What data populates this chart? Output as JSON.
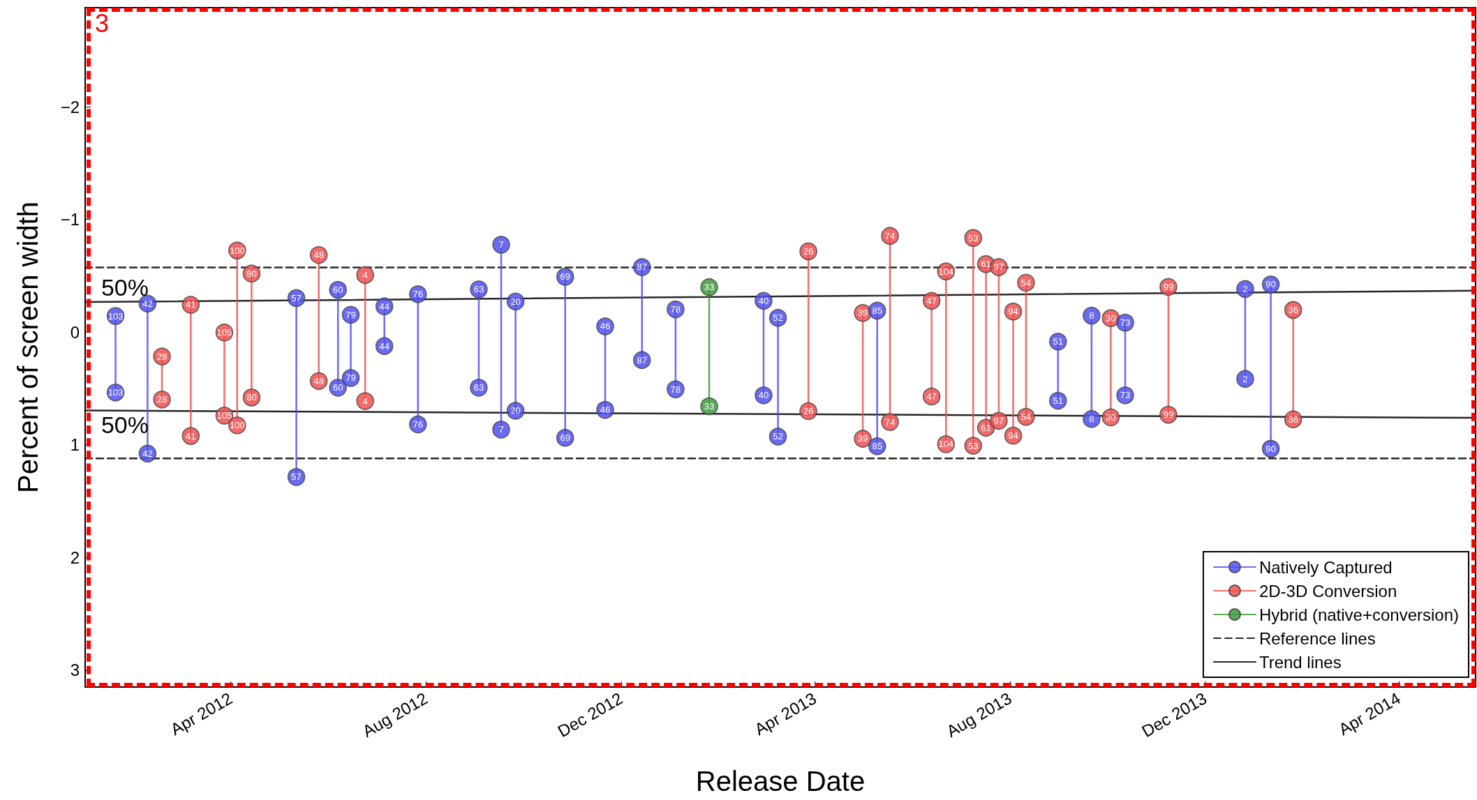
{
  "chart_data": {
    "type": "line",
    "xlabel": "Release Date",
    "ylabel": "Percent of screen width",
    "annotations": [
      "3",
      {
        "text": "50%",
        "x": "2012-01-04",
        "y": -0.267
      },
      {
        "text": "50%",
        "x": "2012-01-04",
        "y": 0.695
      },
      {
        "text": "103",
        "x": "2012-01-20",
        "y": -0.143
      },
      {
        "text": "103",
        "x": "2012-01-20",
        "y": 0.536
      },
      {
        "text": "42",
        "x": "2012-02-09",
        "y": -0.253
      },
      {
        "text": "42",
        "x": "2012-02-09",
        "y": 1.078
      },
      {
        "text": "28",
        "x": "2012-02-18",
        "y": 0.216
      },
      {
        "text": "28",
        "x": "2012-02-18",
        "y": 0.598
      },
      {
        "text": "41",
        "x": "2012-03-07",
        "y": -0.243
      },
      {
        "text": "41",
        "x": "2012-03-07",
        "y": 0.922
      },
      {
        "text": "105",
        "x": "2012-03-28",
        "y": 0.003
      },
      {
        "text": "105",
        "x": "2012-03-28",
        "y": 0.741
      },
      {
        "text": "100",
        "x": "2012-04-05",
        "y": -0.725
      },
      {
        "text": "100",
        "x": "2012-04-05",
        "y": 0.827
      },
      {
        "text": "80",
        "x": "2012-04-14",
        "y": -0.52
      },
      {
        "text": "80",
        "x": "2012-04-14",
        "y": 0.58
      },
      {
        "text": "57",
        "x": "2012-05-12",
        "y": -0.302
      },
      {
        "text": "57",
        "x": "2012-05-12",
        "y": 1.286
      },
      {
        "text": "48",
        "x": "2012-05-26",
        "y": -0.685
      },
      {
        "text": "48",
        "x": "2012-05-26",
        "y": 0.434
      },
      {
        "text": "60",
        "x": "2012-06-07",
        "y": -0.375
      },
      {
        "text": "60",
        "x": "2012-06-07",
        "y": 0.493
      },
      {
        "text": "79",
        "x": "2012-06-15",
        "y": -0.154
      },
      {
        "text": "79",
        "x": "2012-06-15",
        "y": 0.407
      },
      {
        "text": "4",
        "x": "2012-06-24",
        "y": -0.507
      },
      {
        "text": "4",
        "x": "2012-06-24",
        "y": 0.612
      },
      {
        "text": "44",
        "x": "2012-07-06",
        "y": -0.229
      },
      {
        "text": "44",
        "x": "2012-07-06",
        "y": 0.124
      },
      {
        "text": "76",
        "x": "2012-07-27",
        "y": -0.337
      },
      {
        "text": "76",
        "x": "2012-07-27",
        "y": 0.819
      },
      {
        "text": "63",
        "x": "2012-09-03",
        "y": -0.38
      },
      {
        "text": "63",
        "x": "2012-09-03",
        "y": 0.493
      },
      {
        "text": "7",
        "x": "2012-09-17",
        "y": -0.776
      },
      {
        "text": "7",
        "x": "2012-09-17",
        "y": 0.865
      },
      {
        "text": "20",
        "x": "2012-09-26",
        "y": -0.272
      },
      {
        "text": "20",
        "x": "2012-09-26",
        "y": 0.698
      },
      {
        "text": "69",
        "x": "2012-10-27",
        "y": -0.491
      },
      {
        "text": "69",
        "x": "2012-10-27",
        "y": 0.938
      },
      {
        "text": "46",
        "x": "2012-11-21",
        "y": -0.051
      },
      {
        "text": "46",
        "x": "2012-11-21",
        "y": 0.69
      },
      {
        "text": "87",
        "x": "2012-12-14",
        "y": -0.577
      },
      {
        "text": "87",
        "x": "2012-12-14",
        "y": 0.248
      },
      {
        "text": "78",
        "x": "2013-01-04",
        "y": -0.202
      },
      {
        "text": "78",
        "x": "2013-01-04",
        "y": 0.507
      },
      {
        "text": "33",
        "x": "2013-01-25",
        "y": -0.399
      },
      {
        "text": "33",
        "x": "2013-01-25",
        "y": 0.658
      },
      {
        "text": "40",
        "x": "2013-02-28",
        "y": -0.278
      },
      {
        "text": "40",
        "x": "2013-02-28",
        "y": 0.561
      },
      {
        "text": "52",
        "x": "2013-03-09",
        "y": -0.127
      },
      {
        "text": "52",
        "x": "2013-03-09",
        "y": 0.927
      },
      {
        "text": "26",
        "x": "2013-03-28",
        "y": -0.717
      },
      {
        "text": "26",
        "x": "2013-03-28",
        "y": 0.701
      },
      {
        "text": "39",
        "x": "2013-05-01",
        "y": -0.17
      },
      {
        "text": "39",
        "x": "2013-05-01",
        "y": 0.946
      },
      {
        "text": "85",
        "x": "2013-05-10",
        "y": -0.191
      },
      {
        "text": "85",
        "x": "2013-05-10",
        "y": 1.013
      },
      {
        "text": "74",
        "x": "2013-05-18",
        "y": -0.854
      },
      {
        "text": "74",
        "x": "2013-05-18",
        "y": 0.798
      },
      {
        "text": "47",
        "x": "2013-06-13",
        "y": -0.278
      },
      {
        "text": "47",
        "x": "2013-06-13",
        "y": 0.571
      },
      {
        "text": "104",
        "x": "2013-06-22",
        "y": -0.539
      },
      {
        "text": "104",
        "x": "2013-06-22",
        "y": 0.995
      },
      {
        "text": "53",
        "x": "2013-07-09",
        "y": -0.836
      },
      {
        "text": "53",
        "x": "2013-07-09",
        "y": 1.008
      },
      {
        "text": "61",
        "x": "2013-07-17",
        "y": -0.604
      },
      {
        "text": "61",
        "x": "2013-07-17",
        "y": 0.849
      },
      {
        "text": "97",
        "x": "2013-07-25",
        "y": -0.577
      },
      {
        "text": "97",
        "x": "2013-07-25",
        "y": 0.787
      },
      {
        "text": "94",
        "x": "2013-08-03",
        "y": -0.183
      },
      {
        "text": "94",
        "x": "2013-08-03",
        "y": 0.919
      },
      {
        "text": "54",
        "x": "2013-08-11",
        "y": -0.439
      },
      {
        "text": "54",
        "x": "2013-08-11",
        "y": 0.752
      },
      {
        "text": "51",
        "x": "2013-08-31",
        "y": 0.084
      },
      {
        "text": "51",
        "x": "2013-08-31",
        "y": 0.609
      },
      {
        "text": "8",
        "x": "2013-09-21",
        "y": -0.146
      },
      {
        "text": "8",
        "x": "2013-09-21",
        "y": 0.771
      },
      {
        "text": "30",
        "x": "2013-10-03",
        "y": -0.124
      },
      {
        "text": "30",
        "x": "2013-10-03",
        "y": 0.757
      },
      {
        "text": "73",
        "x": "2013-10-12",
        "y": -0.084
      },
      {
        "text": "73",
        "x": "2013-10-12",
        "y": 0.561
      },
      {
        "text": "99",
        "x": "2013-11-08",
        "y": -0.402
      },
      {
        "text": "99",
        "x": "2013-11-08",
        "y": 0.733
      },
      {
        "text": "2",
        "x": "2013-12-26",
        "y": -0.383
      },
      {
        "text": "2",
        "x": "2013-12-26",
        "y": 0.415
      },
      {
        "text": "90",
        "x": "2014-01-11",
        "y": -0.423
      },
      {
        "text": "90",
        "x": "2014-01-11",
        "y": 1.035
      },
      {
        "text": "36",
        "x": "2014-01-25",
        "y": -0.197
      },
      {
        "text": "36",
        "x": "2014-01-25",
        "y": 0.774
      }
    ],
    "xlim": [
      "2012-01-01",
      "2014-05-19"
    ],
    "ylim": [
      3.15,
      -2.88
    ],
    "xticks": [
      {
        "value": "2012-04-01",
        "label": "Apr 2012"
      },
      {
        "value": "2012-08-01",
        "label": "Aug 2012"
      },
      {
        "value": "2012-12-01",
        "label": "Dec 2012"
      },
      {
        "value": "2013-04-01",
        "label": "Apr 2013"
      },
      {
        "value": "2013-08-01",
        "label": "Aug 2013"
      },
      {
        "value": "2013-12-01",
        "label": "Dec 2013"
      },
      {
        "value": "2014-04-01",
        "label": "Apr 2014"
      }
    ],
    "yticks": [
      {
        "value": -2,
        "label": "−2"
      },
      {
        "value": -1,
        "label": "−1"
      },
      0,
      1,
      2,
      3
    ],
    "grid": false,
    "legend": "bottom right",
    "marker": "circle",
    "line_style": "solid",
    "series": [
      {
        "name": "Natively Captured",
        "color": "#5050f0",
        "x": [
          "2012-01-20",
          "2012-01-20"
        ],
        "values": [
          -0.143,
          0.536
        ]
      },
      {
        "color": "#5050f0",
        "x": [
          "2012-02-09",
          "2012-02-09"
        ],
        "values": [
          -0.253,
          1.078
        ]
      },
      {
        "name": "2D-3D Conversion",
        "color": "#f05050",
        "x": [
          "2012-02-18",
          "2012-02-18"
        ],
        "values": [
          0.216,
          0.598
        ]
      },
      {
        "color": "#f05050",
        "x": [
          "2012-03-07",
          "2012-03-07"
        ],
        "values": [
          -0.243,
          0.922
        ]
      },
      {
        "color": "#f05050",
        "x": [
          "2012-03-28",
          "2012-03-28"
        ],
        "values": [
          0.003,
          0.741
        ]
      },
      {
        "color": "#f05050",
        "x": [
          "2012-04-05",
          "2012-04-05"
        ],
        "values": [
          -0.725,
          0.827
        ]
      },
      {
        "color": "#f05050",
        "x": [
          "2012-04-14",
          "2012-04-14"
        ],
        "values": [
          -0.52,
          0.58
        ]
      },
      {
        "color": "#5050f0",
        "x": [
          "2012-05-12",
          "2012-05-12"
        ],
        "values": [
          -0.302,
          1.286
        ]
      },
      {
        "color": "#f05050",
        "x": [
          "2012-05-26",
          "2012-05-26"
        ],
        "values": [
          -0.685,
          0.434
        ]
      },
      {
        "color": "#5050f0",
        "x": [
          "2012-06-07",
          "2012-06-07"
        ],
        "values": [
          -0.375,
          0.493
        ]
      },
      {
        "color": "#5050f0",
        "x": [
          "2012-06-15",
          "2012-06-15"
        ],
        "values": [
          -0.154,
          0.407
        ]
      },
      {
        "color": "#f05050",
        "x": [
          "2012-06-24",
          "2012-06-24"
        ],
        "values": [
          -0.507,
          0.612
        ]
      },
      {
        "color": "#5050f0",
        "x": [
          "2012-07-06",
          "2012-07-06"
        ],
        "values": [
          -0.229,
          0.124
        ]
      },
      {
        "color": "#5050f0",
        "x": [
          "2012-07-27",
          "2012-07-27"
        ],
        "values": [
          -0.337,
          0.819
        ]
      },
      {
        "color": "#5050f0",
        "x": [
          "2012-09-03",
          "2012-09-03"
        ],
        "values": [
          -0.38,
          0.493
        ]
      },
      {
        "color": "#5050f0",
        "x": [
          "2012-09-17",
          "2012-09-17"
        ],
        "values": [
          -0.776,
          0.865
        ]
      },
      {
        "color": "#5050f0",
        "x": [
          "2012-09-26",
          "2012-09-26"
        ],
        "values": [
          -0.272,
          0.698
        ]
      },
      {
        "color": "#5050f0",
        "x": [
          "2012-10-27",
          "2012-10-27"
        ],
        "values": [
          -0.491,
          0.938
        ]
      },
      {
        "color": "#5050f0",
        "x": [
          "2012-11-21",
          "2012-11-21"
        ],
        "values": [
          -0.051,
          0.69
        ]
      },
      {
        "color": "#5050f0",
        "x": [
          "2012-12-14",
          "2012-12-14"
        ],
        "values": [
          -0.577,
          0.248
        ]
      },
      {
        "color": "#5050f0",
        "x": [
          "2013-01-04",
          "2013-01-04"
        ],
        "values": [
          -0.202,
          0.507
        ]
      },
      {
        "name": "Hybrid (native+conversion)",
        "color": "#3f9a3f",
        "x": [
          "2013-01-25",
          "2013-01-25"
        ],
        "values": [
          -0.399,
          0.658
        ]
      },
      {
        "color": "#5050f0",
        "x": [
          "2013-02-28",
          "2013-02-28"
        ],
        "values": [
          -0.278,
          0.561
        ]
      },
      {
        "color": "#5050f0",
        "x": [
          "2013-03-09",
          "2013-03-09"
        ],
        "values": [
          -0.127,
          0.927
        ]
      },
      {
        "color": "#f05050",
        "x": [
          "2013-03-28",
          "2013-03-28"
        ],
        "values": [
          -0.717,
          0.701
        ]
      },
      {
        "color": "#f05050",
        "x": [
          "2013-05-01",
          "2013-05-01"
        ],
        "values": [
          -0.17,
          0.946
        ]
      },
      {
        "color": "#5050f0",
        "x": [
          "2013-05-10",
          "2013-05-10"
        ],
        "values": [
          -0.191,
          1.013
        ]
      },
      {
        "color": "#f05050",
        "x": [
          "2013-05-18",
          "2013-05-18"
        ],
        "values": [
          -0.854,
          0.798
        ]
      },
      {
        "color": "#f05050",
        "x": [
          "2013-06-13",
          "2013-06-13"
        ],
        "values": [
          -0.278,
          0.571
        ]
      },
      {
        "color": "#f05050",
        "x": [
          "2013-06-22",
          "2013-06-22"
        ],
        "values": [
          -0.539,
          0.995
        ]
      },
      {
        "color": "#f05050",
        "x": [
          "2013-07-09",
          "2013-07-09"
        ],
        "values": [
          -0.836,
          1.008
        ]
      },
      {
        "color": "#f05050",
        "x": [
          "2013-07-17",
          "2013-07-17"
        ],
        "values": [
          -0.604,
          0.849
        ]
      },
      {
        "color": "#f05050",
        "x": [
          "2013-07-25",
          "2013-07-25"
        ],
        "values": [
          -0.577,
          0.787
        ]
      },
      {
        "color": "#f05050",
        "x": [
          "2013-08-03",
          "2013-08-03"
        ],
        "values": [
          -0.183,
          0.919
        ]
      },
      {
        "color": "#f05050",
        "x": [
          "2013-08-11",
          "2013-08-11"
        ],
        "values": [
          -0.439,
          0.752
        ]
      },
      {
        "color": "#5050f0",
        "x": [
          "2013-08-31",
          "2013-08-31"
        ],
        "values": [
          0.084,
          0.609
        ]
      },
      {
        "color": "#5050f0",
        "x": [
          "2013-09-21",
          "2013-09-21"
        ],
        "values": [
          -0.146,
          0.771
        ]
      },
      {
        "color": "#f05050",
        "x": [
          "2013-10-03",
          "2013-10-03"
        ],
        "values": [
          -0.124,
          0.757
        ]
      },
      {
        "color": "#5050f0",
        "x": [
          "2013-10-12",
          "2013-10-12"
        ],
        "values": [
          -0.084,
          0.561
        ]
      },
      {
        "color": "#f05050",
        "x": [
          "2013-11-08",
          "2013-11-08"
        ],
        "values": [
          -0.402,
          0.733
        ]
      },
      {
        "color": "#5050f0",
        "x": [
          "2013-12-26",
          "2013-12-26"
        ],
        "values": [
          -0.383,
          0.415
        ]
      },
      {
        "color": "#5050f0",
        "x": [
          "2014-01-11",
          "2014-01-11"
        ],
        "values": [
          -0.423,
          1.035
        ]
      },
      {
        "color": "#f05050",
        "x": [
          "2014-01-25",
          "2014-01-25"
        ],
        "values": [
          -0.197,
          0.774
        ]
      },
      {
        "name": "Reference lines",
        "color": "#000000",
        "marker": "none",
        "line_style": "dashed",
        "x": [
          "2012-01-01",
          "2014-05-19"
        ],
        "values": [
          -0.574,
          -0.574
        ]
      },
      {
        "color": "#000000",
        "marker": "none",
        "line_style": "dashed",
        "x": [
          "2012-01-01",
          "2014-05-19"
        ],
        "values": [
          1.121,
          1.121
        ]
      },
      {
        "name": "Trend lines",
        "color": "#000000",
        "marker": "none",
        "x": [
          "2012-01-01",
          "2014-05-19"
        ],
        "values": [
          -0.267,
          -0.368
        ]
      },
      {
        "color": "#000000",
        "marker": "none",
        "x": [
          "2012-01-01",
          "2014-05-19"
        ],
        "values": [
          0.695,
          0.761
        ]
      }
    ]
  }
}
